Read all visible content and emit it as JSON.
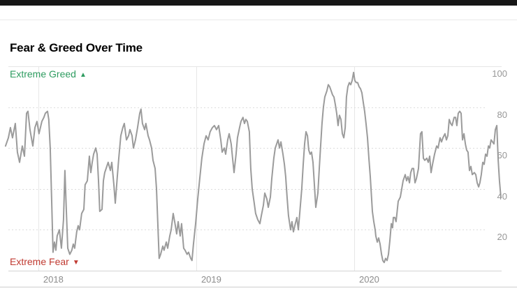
{
  "header": {
    "title": "Fear & Greed Over Time"
  },
  "annotations": {
    "greed": {
      "label": "Extreme Greed",
      "icon": "▲",
      "color": "#2e9c60"
    },
    "fear": {
      "label": "Extreme Fear",
      "icon": "▼",
      "color": "#c03a31"
    }
  },
  "chart_data": {
    "type": "line",
    "title": "Fear & Greed Over Time",
    "xlabel": "",
    "ylabel": "",
    "x_ticks": [
      2018,
      2019,
      2020
    ],
    "y_ticks": [
      100,
      80,
      60,
      40,
      20
    ],
    "xlim": [
      2017.757,
      2021.031
    ],
    "ylim": [
      0,
      100
    ],
    "grid": "horizontal-dashed-and-vertical-year-lines",
    "legend": "none",
    "line_color": "#9b9b9b",
    "gridline_color": "#dcdcdc",
    "axis_color": "#d4d4d4",
    "series": [
      {
        "name": "fear-greed-index",
        "points": [
          [
            2017.792,
            61
          ],
          [
            2017.81,
            65
          ],
          [
            2017.823,
            70
          ],
          [
            2017.836,
            65
          ],
          [
            2017.854,
            72
          ],
          [
            2017.867,
            58
          ],
          [
            2017.881,
            53
          ],
          [
            2017.898,
            61
          ],
          [
            2017.912,
            56
          ],
          [
            2017.925,
            77
          ],
          [
            2017.934,
            78
          ],
          [
            2017.947,
            69
          ],
          [
            2017.965,
            61
          ],
          [
            2017.978,
            70
          ],
          [
            2017.991,
            73
          ],
          [
            2018.004,
            67
          ],
          [
            2018.022,
            73
          ],
          [
            2018.035,
            75
          ],
          [
            2018.044,
            77
          ],
          [
            2018.058,
            78
          ],
          [
            2018.066,
            74
          ],
          [
            2018.075,
            60
          ],
          [
            2018.084,
            35
          ],
          [
            2018.093,
            9
          ],
          [
            2018.102,
            14
          ],
          [
            2018.111,
            10
          ],
          [
            2018.119,
            17
          ],
          [
            2018.133,
            20
          ],
          [
            2018.146,
            11
          ],
          [
            2018.159,
            25
          ],
          [
            2018.168,
            49
          ],
          [
            2018.177,
            30
          ],
          [
            2018.186,
            11
          ],
          [
            2018.199,
            8
          ],
          [
            2018.212,
            10
          ],
          [
            2018.221,
            13
          ],
          [
            2018.23,
            11
          ],
          [
            2018.243,
            19
          ],
          [
            2018.252,
            22
          ],
          [
            2018.261,
            20
          ],
          [
            2018.274,
            28
          ],
          [
            2018.288,
            30
          ],
          [
            2018.296,
            42
          ],
          [
            2018.31,
            44
          ],
          [
            2018.323,
            56
          ],
          [
            2018.332,
            48
          ],
          [
            2018.341,
            53
          ],
          [
            2018.35,
            57
          ],
          [
            2018.363,
            60
          ],
          [
            2018.372,
            57
          ],
          [
            2018.381,
            44
          ],
          [
            2018.389,
            29
          ],
          [
            2018.403,
            30
          ],
          [
            2018.412,
            44
          ],
          [
            2018.42,
            48
          ],
          [
            2018.429,
            50
          ],
          [
            2018.442,
            53
          ],
          [
            2018.456,
            49
          ],
          [
            2018.465,
            53
          ],
          [
            2018.478,
            42
          ],
          [
            2018.487,
            33
          ],
          [
            2018.5,
            46
          ],
          [
            2018.509,
            55
          ],
          [
            2018.522,
            66
          ],
          [
            2018.535,
            70
          ],
          [
            2018.544,
            72
          ],
          [
            2018.558,
            64
          ],
          [
            2018.571,
            66
          ],
          [
            2018.58,
            69
          ],
          [
            2018.593,
            66
          ],
          [
            2018.602,
            60
          ],
          [
            2018.615,
            64
          ],
          [
            2018.628,
            70
          ],
          [
            2018.642,
            77
          ],
          [
            2018.65,
            79
          ],
          [
            2018.659,
            72
          ],
          [
            2018.673,
            69
          ],
          [
            2018.681,
            72
          ],
          [
            2018.695,
            66
          ],
          [
            2018.704,
            64
          ],
          [
            2018.717,
            60
          ],
          [
            2018.726,
            54
          ],
          [
            2018.739,
            50
          ],
          [
            2018.748,
            40
          ],
          [
            2018.757,
            22
          ],
          [
            2018.765,
            6
          ],
          [
            2018.774,
            8
          ],
          [
            2018.788,
            12
          ],
          [
            2018.796,
            10
          ],
          [
            2018.81,
            14
          ],
          [
            2018.819,
            11
          ],
          [
            2018.832,
            17
          ],
          [
            2018.841,
            20
          ],
          [
            2018.854,
            28
          ],
          [
            2018.863,
            24
          ],
          [
            2018.876,
            18
          ],
          [
            2018.885,
            24
          ],
          [
            2018.898,
            17
          ],
          [
            2018.907,
            23
          ],
          [
            2018.92,
            11
          ],
          [
            2018.929,
            10
          ],
          [
            2018.942,
            8
          ],
          [
            2018.951,
            9
          ],
          [
            2018.965,
            6
          ],
          [
            2018.973,
            5
          ],
          [
            2018.982,
            13
          ],
          [
            2018.996,
            23
          ],
          [
            2019.009,
            35
          ],
          [
            2019.022,
            45
          ],
          [
            2019.035,
            55
          ],
          [
            2019.049,
            62
          ],
          [
            2019.062,
            66
          ],
          [
            2019.075,
            64
          ],
          [
            2019.088,
            68
          ],
          [
            2019.102,
            70
          ],
          [
            2019.115,
            71
          ],
          [
            2019.128,
            69
          ],
          [
            2019.142,
            71
          ],
          [
            2019.155,
            64
          ],
          [
            2019.164,
            58
          ],
          [
            2019.177,
            60
          ],
          [
            2019.186,
            57
          ],
          [
            2019.199,
            64
          ],
          [
            2019.208,
            67
          ],
          [
            2019.221,
            62
          ],
          [
            2019.23,
            55
          ],
          [
            2019.239,
            48
          ],
          [
            2019.252,
            57
          ],
          [
            2019.261,
            65
          ],
          [
            2019.274,
            70
          ],
          [
            2019.283,
            73
          ],
          [
            2019.296,
            75
          ],
          [
            2019.305,
            72
          ],
          [
            2019.314,
            74
          ],
          [
            2019.323,
            73
          ],
          [
            2019.336,
            68
          ],
          [
            2019.345,
            50
          ],
          [
            2019.354,
            40
          ],
          [
            2019.367,
            33
          ],
          [
            2019.376,
            28
          ],
          [
            2019.389,
            25
          ],
          [
            2019.403,
            23
          ],
          [
            2019.412,
            27
          ],
          [
            2019.425,
            32
          ],
          [
            2019.434,
            38
          ],
          [
            2019.447,
            35
          ],
          [
            2019.456,
            31
          ],
          [
            2019.469,
            36
          ],
          [
            2019.478,
            45
          ],
          [
            2019.491,
            55
          ],
          [
            2019.5,
            60
          ],
          [
            2019.509,
            62
          ],
          [
            2019.518,
            64
          ],
          [
            2019.527,
            60
          ],
          [
            2019.536,
            63
          ],
          [
            2019.549,
            57
          ],
          [
            2019.558,
            52
          ],
          [
            2019.566,
            46
          ],
          [
            2019.575,
            36
          ],
          [
            2019.584,
            27
          ],
          [
            2019.597,
            20
          ],
          [
            2019.606,
            24
          ],
          [
            2019.615,
            19
          ],
          [
            2019.624,
            22
          ],
          [
            2019.637,
            26
          ],
          [
            2019.646,
            20
          ],
          [
            2019.655,
            28
          ],
          [
            2019.668,
            40
          ],
          [
            2019.677,
            52
          ],
          [
            2019.686,
            62
          ],
          [
            2019.695,
            68
          ],
          [
            2019.704,
            66
          ],
          [
            2019.712,
            59
          ],
          [
            2019.721,
            57
          ],
          [
            2019.73,
            58
          ],
          [
            2019.739,
            53
          ],
          [
            2019.748,
            42
          ],
          [
            2019.757,
            31
          ],
          [
            2019.77,
            38
          ],
          [
            2019.779,
            50
          ],
          [
            2019.788,
            62
          ],
          [
            2019.796,
            72
          ],
          [
            2019.805,
            80
          ],
          [
            2019.814,
            85
          ],
          [
            2019.827,
            88
          ],
          [
            2019.836,
            91
          ],
          [
            2019.845,
            90
          ],
          [
            2019.854,
            88
          ],
          [
            2019.863,
            86
          ],
          [
            2019.872,
            85
          ],
          [
            2019.881,
            81
          ],
          [
            2019.889,
            77
          ],
          [
            2019.898,
            71
          ],
          [
            2019.907,
            76
          ],
          [
            2019.916,
            74
          ],
          [
            2019.925,
            67
          ],
          [
            2019.934,
            65
          ],
          [
            2019.943,
            70
          ],
          [
            2019.951,
            85
          ],
          [
            2019.96,
            90
          ],
          [
            2019.969,
            92
          ],
          [
            2019.978,
            91
          ],
          [
            2019.987,
            93
          ],
          [
            2019.996,
            97
          ],
          [
            2020.004,
            93
          ],
          [
            2020.013,
            92
          ],
          [
            2020.022,
            92
          ],
          [
            2020.031,
            90
          ],
          [
            2020.04,
            89
          ],
          [
            2020.049,
            87
          ],
          [
            2020.058,
            82
          ],
          [
            2020.066,
            78
          ],
          [
            2020.075,
            72
          ],
          [
            2020.084,
            65
          ],
          [
            2020.093,
            55
          ],
          [
            2020.102,
            46
          ],
          [
            2020.115,
            29
          ],
          [
            2020.124,
            24
          ],
          [
            2020.133,
            20
          ],
          [
            2020.137,
            17
          ],
          [
            2020.146,
            14
          ],
          [
            2020.155,
            16
          ],
          [
            2020.164,
            13
          ],
          [
            2020.173,
            8
          ],
          [
            2020.181,
            5
          ],
          [
            2020.19,
            4
          ],
          [
            2020.199,
            6
          ],
          [
            2020.208,
            5
          ],
          [
            2020.217,
            8
          ],
          [
            2020.226,
            15
          ],
          [
            2020.235,
            23
          ],
          [
            2020.243,
            21
          ],
          [
            2020.248,
            26
          ],
          [
            2020.257,
            26
          ],
          [
            2020.265,
            24
          ],
          [
            2020.279,
            34
          ],
          [
            2020.292,
            36
          ],
          [
            2020.301,
            40
          ],
          [
            2020.31,
            44
          ],
          [
            2020.323,
            47
          ],
          [
            2020.332,
            44
          ],
          [
            2020.341,
            46
          ],
          [
            2020.35,
            43
          ],
          [
            2020.358,
            48
          ],
          [
            2020.367,
            50
          ],
          [
            2020.376,
            50
          ],
          [
            2020.385,
            43
          ],
          [
            2020.394,
            45
          ],
          [
            2020.407,
            50
          ],
          [
            2020.42,
            67
          ],
          [
            2020.429,
            68
          ],
          [
            2020.438,
            55
          ],
          [
            2020.447,
            54
          ],
          [
            2020.46,
            55
          ],
          [
            2020.469,
            53
          ],
          [
            2020.478,
            56
          ],
          [
            2020.487,
            48
          ],
          [
            2020.496,
            52
          ],
          [
            2020.509,
            57
          ],
          [
            2020.522,
            61
          ],
          [
            2020.531,
            60
          ],
          [
            2020.544,
            65
          ],
          [
            2020.553,
            63
          ],
          [
            2020.562,
            65
          ],
          [
            2020.575,
            67
          ],
          [
            2020.584,
            64
          ],
          [
            2020.593,
            66
          ],
          [
            2020.602,
            74
          ],
          [
            2020.611,
            72
          ],
          [
            2020.62,
            71
          ],
          [
            2020.633,
            75
          ],
          [
            2020.642,
            75
          ],
          [
            2020.65,
            71
          ],
          [
            2020.659,
            77
          ],
          [
            2020.668,
            78
          ],
          [
            2020.677,
            77
          ],
          [
            2020.686,
            64
          ],
          [
            2020.695,
            67
          ],
          [
            2020.704,
            62
          ],
          [
            2020.712,
            59
          ],
          [
            2020.721,
            58
          ],
          [
            2020.73,
            49
          ],
          [
            2020.739,
            51
          ],
          [
            2020.748,
            47
          ],
          [
            2020.761,
            48
          ],
          [
            2020.77,
            47
          ],
          [
            2020.779,
            43
          ],
          [
            2020.788,
            41
          ],
          [
            2020.796,
            43
          ],
          [
            2020.805,
            47
          ],
          [
            2020.814,
            53
          ],
          [
            2020.823,
            52
          ],
          [
            2020.832,
            57
          ],
          [
            2020.841,
            56
          ],
          [
            2020.85,
            61
          ],
          [
            2020.858,
            60
          ],
          [
            2020.867,
            64
          ],
          [
            2020.876,
            63
          ],
          [
            2020.885,
            62
          ],
          [
            2020.894,
            69
          ],
          [
            2020.903,
            71
          ],
          [
            2020.912,
            54
          ],
          [
            2020.92,
            44
          ],
          [
            2020.929,
            36
          ]
        ]
      }
    ]
  }
}
